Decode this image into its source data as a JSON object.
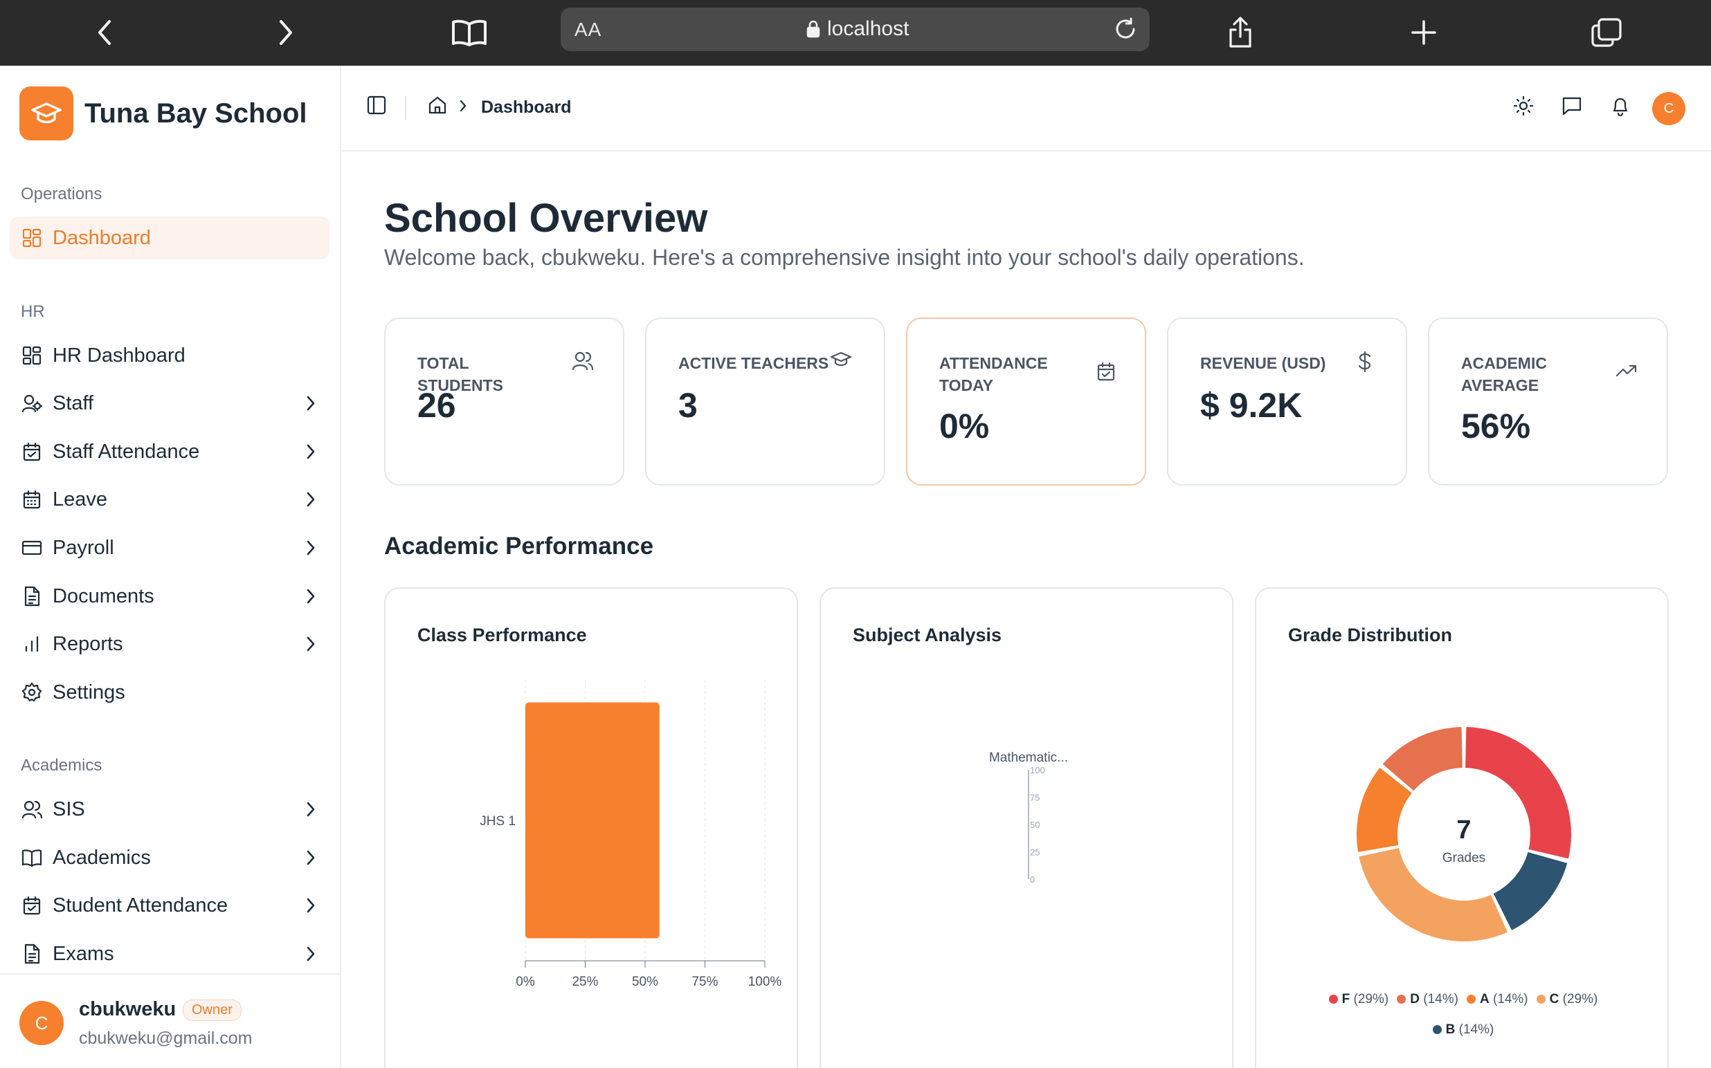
{
  "browser": {
    "aa_label": "AA",
    "url_host": "localhost"
  },
  "sidebar": {
    "brand": "Tuna Bay School",
    "sections": {
      "operations": "Operations",
      "hr": "HR",
      "academics": "Academics"
    },
    "operations_items": [
      {
        "label": "Dashboard",
        "active": true,
        "icon": "dashboard-icon"
      }
    ],
    "hr_items": [
      {
        "label": "HR Dashboard",
        "icon": "dashboard-icon"
      },
      {
        "label": "Staff",
        "icon": "users-icon"
      },
      {
        "label": "Staff Attendance",
        "icon": "calendar-check-icon"
      },
      {
        "label": "Leave",
        "icon": "calendar-icon"
      },
      {
        "label": "Payroll",
        "icon": "credit-card-icon"
      },
      {
        "label": "Documents",
        "icon": "file-icon"
      },
      {
        "label": "Reports",
        "icon": "bar-chart-icon"
      },
      {
        "label": "Settings",
        "icon": "gear-icon"
      }
    ],
    "academic_items": [
      {
        "label": "SIS",
        "icon": "users-icon"
      },
      {
        "label": "Academics",
        "icon": "book-icon"
      },
      {
        "label": "Student Attendance",
        "icon": "calendar-check-icon"
      },
      {
        "label": "Exams",
        "icon": "file-icon"
      }
    ],
    "user": {
      "initial": "C",
      "name": "cbukweku",
      "role": "Owner",
      "email": "cbukweku@gmail.com"
    }
  },
  "topbar": {
    "breadcrumb": "Dashboard",
    "avatar_initial": "C"
  },
  "main": {
    "title": "School Overview",
    "subtitle": "Welcome back, cbukweku. Here's a comprehensive insight into your school's daily operations.",
    "stats": [
      {
        "label": "TOTAL STUDENTS",
        "value": "26",
        "icon": "users-icon"
      },
      {
        "label": "ACTIVE TEACHERS",
        "value": "3",
        "icon": "graduation-cap-icon"
      },
      {
        "label": "ATTENDANCE TODAY",
        "value": "0%",
        "icon": "calendar-check-icon"
      },
      {
        "label": "REVENUE (USD)",
        "value": "$ 9.2K",
        "icon": "dollar-icon"
      },
      {
        "label": "ACADEMIC AVERAGE",
        "value": "56%",
        "icon": "trending-up-icon"
      }
    ],
    "section_title": "Academic Performance",
    "panels": {
      "class_performance": "Class Performance",
      "subject_analysis": "Subject Analysis",
      "grade_distribution": "Grade Distribution"
    }
  },
  "chart_data": [
    {
      "type": "bar",
      "orientation": "horizontal",
      "title": "Class Performance",
      "categories": [
        "JHS 1"
      ],
      "values": [
        56
      ],
      "x_ticks": [
        "0%",
        "25%",
        "50%",
        "75%",
        "100%"
      ],
      "xlim": [
        0,
        100
      ],
      "grid": true,
      "color": "#f7802e"
    },
    {
      "type": "radar",
      "title": "Subject Analysis",
      "categories": [
        "Mathematic..."
      ],
      "radial_ticks": [
        "100",
        "75",
        "50",
        "25",
        "0"
      ],
      "rlim": [
        0,
        100
      ]
    },
    {
      "type": "pie",
      "title": "Grade Distribution",
      "center_value": "7",
      "center_label": "Grades",
      "slices": [
        {
          "name": "F",
          "value": 29,
          "pct_label": "(29%)",
          "color": "#e8434a"
        },
        {
          "name": "B",
          "value": 14,
          "pct_label": "(14%)",
          "color": "#2d5470"
        },
        {
          "name": "C",
          "value": 29,
          "pct_label": "(29%)",
          "color": "#f3a35f"
        },
        {
          "name": "A",
          "value": 14,
          "pct_label": "(14%)",
          "color": "#f7802e"
        },
        {
          "name": "D",
          "value": 14,
          "pct_label": "(14%)",
          "color": "#e5714f"
        }
      ],
      "legend_order": [
        "F",
        "D",
        "A",
        "C",
        "B"
      ],
      "legend_position": "bottom"
    }
  ]
}
